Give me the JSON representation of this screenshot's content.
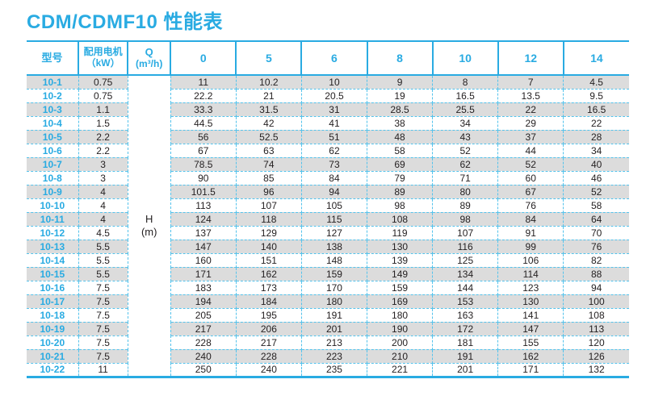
{
  "title": "CDM/CDMF10 性能表",
  "colors": {
    "accent": "#29abe2",
    "stripe": "#dcdcdc",
    "dashed_border": "#55c3ec",
    "text": "#231f20"
  },
  "table": {
    "headers": {
      "model": "型号",
      "motor_line1": "配用电机",
      "motor_line2": "（kW）",
      "q_line1": "Q",
      "q_line2": "(m³/h)",
      "flow_columns": [
        "0",
        "5",
        "6",
        "8",
        "10",
        "12",
        "14"
      ]
    },
    "h_label_line1": "H",
    "h_label_line2": "(m)",
    "rows": [
      {
        "model": "10-1",
        "kw": "0.75",
        "values": [
          "11",
          "10.2",
          "10",
          "9",
          "8",
          "7",
          "4.5"
        ]
      },
      {
        "model": "10-2",
        "kw": "0.75",
        "values": [
          "22.2",
          "21",
          "20.5",
          "19",
          "16.5",
          "13.5",
          "9.5"
        ]
      },
      {
        "model": "10-3",
        "kw": "1.1",
        "values": [
          "33.3",
          "31.5",
          "31",
          "28.5",
          "25.5",
          "22",
          "16.5"
        ]
      },
      {
        "model": "10-4",
        "kw": "1.5",
        "values": [
          "44.5",
          "42",
          "41",
          "38",
          "34",
          "29",
          "22"
        ]
      },
      {
        "model": "10-5",
        "kw": "2.2",
        "values": [
          "56",
          "52.5",
          "51",
          "48",
          "43",
          "37",
          "28"
        ]
      },
      {
        "model": "10-6",
        "kw": "2.2",
        "values": [
          "67",
          "63",
          "62",
          "58",
          "52",
          "44",
          "34"
        ]
      },
      {
        "model": "10-7",
        "kw": "3",
        "values": [
          "78.5",
          "74",
          "73",
          "69",
          "62",
          "52",
          "40"
        ]
      },
      {
        "model": "10-8",
        "kw": "3",
        "values": [
          "90",
          "85",
          "84",
          "79",
          "71",
          "60",
          "46"
        ]
      },
      {
        "model": "10-9",
        "kw": "4",
        "values": [
          "101.5",
          "96",
          "94",
          "89",
          "80",
          "67",
          "52"
        ]
      },
      {
        "model": "10-10",
        "kw": "4",
        "values": [
          "113",
          "107",
          "105",
          "98",
          "89",
          "76",
          "58"
        ]
      },
      {
        "model": "10-11",
        "kw": "4",
        "values": [
          "124",
          "118",
          "115",
          "108",
          "98",
          "84",
          "64"
        ]
      },
      {
        "model": "10-12",
        "kw": "4.5",
        "values": [
          "137",
          "129",
          "127",
          "119",
          "107",
          "91",
          "70"
        ]
      },
      {
        "model": "10-13",
        "kw": "5.5",
        "values": [
          "147",
          "140",
          "138",
          "130",
          "116",
          "99",
          "76"
        ]
      },
      {
        "model": "10-14",
        "kw": "5.5",
        "values": [
          "160",
          "151",
          "148",
          "139",
          "125",
          "106",
          "82"
        ]
      },
      {
        "model": "10-15",
        "kw": "5.5",
        "values": [
          "171",
          "162",
          "159",
          "149",
          "134",
          "114",
          "88"
        ]
      },
      {
        "model": "10-16",
        "kw": "7.5",
        "values": [
          "183",
          "173",
          "170",
          "159",
          "144",
          "123",
          "94"
        ]
      },
      {
        "model": "10-17",
        "kw": "7.5",
        "values": [
          "194",
          "184",
          "180",
          "169",
          "153",
          "130",
          "100"
        ]
      },
      {
        "model": "10-18",
        "kw": "7.5",
        "values": [
          "205",
          "195",
          "191",
          "180",
          "163",
          "141",
          "108"
        ]
      },
      {
        "model": "10-19",
        "kw": "7.5",
        "values": [
          "217",
          "206",
          "201",
          "190",
          "172",
          "147",
          "113"
        ]
      },
      {
        "model": "10-20",
        "kw": "7.5",
        "values": [
          "228",
          "217",
          "213",
          "200",
          "181",
          "155",
          "120"
        ]
      },
      {
        "model": "10-21",
        "kw": "7.5",
        "values": [
          "240",
          "228",
          "223",
          "210",
          "191",
          "162",
          "126"
        ]
      },
      {
        "model": "10-22",
        "kw": "11",
        "values": [
          "250",
          "240",
          "235",
          "221",
          "201",
          "171",
          "132"
        ]
      }
    ]
  }
}
